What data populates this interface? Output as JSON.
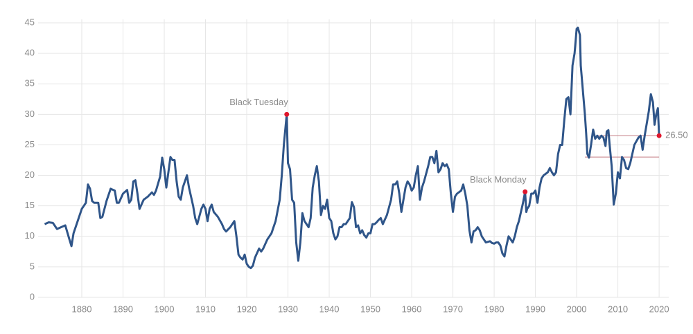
{
  "chart_data": {
    "type": "line",
    "color": "#2f5589",
    "marker_color": "#e0162b",
    "reference_color": "#c47a82",
    "grid": true,
    "xlim": [
      1870,
      2022
    ],
    "xticks": [
      1880,
      1890,
      1900,
      1910,
      1920,
      1930,
      1940,
      1950,
      1960,
      1970,
      1980,
      1990,
      2000,
      2010,
      2020
    ],
    "ylim": [
      0,
      45
    ],
    "yticks": [
      0,
      5,
      10,
      15,
      20,
      25,
      30,
      35,
      40,
      45
    ],
    "x": [
      1871,
      1872,
      1873,
      1874,
      1875,
      1876,
      1877,
      1877.5,
      1878,
      1879,
      1880,
      1881,
      1881.5,
      1882,
      1882.5,
      1883,
      1884,
      1884.5,
      1885,
      1886,
      1887,
      1888,
      1888.5,
      1889,
      1890,
      1891,
      1891.5,
      1892,
      1892.5,
      1893,
      1893.5,
      1894,
      1895,
      1896,
      1897,
      1897.5,
      1898,
      1899,
      1899.5,
      1900,
      1900.5,
      1901,
      1901.5,
      1902,
      1902.5,
      1903,
      1903.5,
      1904,
      1904.5,
      1905,
      1905.5,
      1906,
      1907,
      1907.5,
      1908,
      1909,
      1909.5,
      1910,
      1910.5,
      1911,
      1911.5,
      1912,
      1913,
      1914,
      1914.5,
      1915,
      1916,
      1917,
      1917.5,
      1918,
      1918.5,
      1919,
      1919.5,
      1920,
      1920.5,
      1921,
      1921.5,
      1922,
      1923,
      1923.5,
      1924,
      1925,
      1926,
      1926.5,
      1927,
      1928,
      1928.5,
      1929,
      1929.7,
      1930,
      1930.5,
      1931,
      1931.5,
      1932,
      1932.5,
      1933,
      1933.5,
      1934,
      1934.5,
      1935,
      1935.5,
      1936,
      1936.5,
      1937,
      1937.5,
      1938,
      1938.5,
      1939,
      1939.5,
      1940,
      1940.5,
      1941,
      1941.5,
      1942,
      1942.5,
      1943,
      1943.5,
      1944,
      1945,
      1945.5,
      1946,
      1946.5,
      1947,
      1947.5,
      1948,
      1948.5,
      1949,
      1949.5,
      1950,
      1950.5,
      1951,
      1951.5,
      1952,
      1952.5,
      1953,
      1954,
      1955,
      1955.5,
      1956,
      1956.5,
      1957,
      1957.5,
      1958,
      1958.5,
      1959,
      1959.5,
      1960,
      1960.5,
      1961,
      1961.5,
      1962,
      1962.5,
      1963,
      1964,
      1964.5,
      1965,
      1965.5,
      1966,
      1966.5,
      1967,
      1967.5,
      1968,
      1968.5,
      1969,
      1969.5,
      1970,
      1970.5,
      1971,
      1972,
      1972.5,
      1973,
      1973.5,
      1974,
      1974.5,
      1975,
      1975.5,
      1976,
      1976.5,
      1977,
      1977.5,
      1978,
      1979,
      1979.5,
      1980,
      1980.5,
      1981,
      1981.5,
      1982,
      1982.5,
      1983,
      1983.5,
      1984,
      1984.5,
      1985,
      1985.5,
      1986,
      1987,
      1987.5,
      1987.8,
      1988,
      1988.5,
      1989,
      1989.5,
      1990,
      1990.5,
      1991,
      1991.5,
      1992,
      1993,
      1993.5,
      1994,
      1994.5,
      1995,
      1995.5,
      1996,
      1996.5,
      1997,
      1997.5,
      1998,
      1998.5,
      1999,
      1999.5,
      2000,
      2000.3,
      2000.8,
      2001,
      2001.5,
      2002,
      2002.3,
      2002.6,
      2003,
      2003.5,
      2004,
      2004.5,
      2005,
      2005.5,
      2006,
      2006.5,
      2007,
      2007.3,
      2007.7,
      2008,
      2008.5,
      2009,
      2009.5,
      2010,
      2010.5,
      2011,
      2011.5,
      2012,
      2012.5,
      2013,
      2013.5,
      2014,
      2015,
      2015.5,
      2016,
      2016.5,
      2017,
      2017.5,
      2018,
      2018.5,
      2018.9,
      2019.3,
      2019.7,
      2020
    ],
    "values": [
      12,
      12.3,
      12.2,
      11.2,
      11.5,
      11.8,
      9.5,
      8.4,
      10.5,
      12.5,
      14.5,
      15.5,
      18.5,
      17.8,
      15.8,
      15.5,
      15.5,
      13,
      13.2,
      15.8,
      17.8,
      17.5,
      15.5,
      15.5,
      17,
      17.6,
      15.5,
      16,
      19,
      19.2,
      17,
      14.5,
      16,
      16.5,
      17.2,
      16.8,
      17.5,
      19.8,
      22.9,
      21,
      18,
      20.5,
      23,
      22.5,
      22.5,
      19,
      16.5,
      16,
      18,
      19,
      20,
      18,
      15,
      13,
      12,
      14.5,
      15.2,
      14.5,
      12.5,
      14.5,
      15.2,
      14,
      13.2,
      12,
      11.2,
      10.8,
      11.5,
      12.5,
      10,
      7,
      6.5,
      6.2,
      7,
      5.5,
      5,
      4.8,
      5.2,
      6.5,
      8,
      7.5,
      8,
      9.5,
      10.5,
      11.5,
      12.5,
      16,
      20,
      25,
      30,
      22,
      21,
      16,
      15.5,
      9,
      6,
      9,
      13.8,
      12.5,
      12,
      11.5,
      13,
      18,
      20,
      21.5,
      19,
      13.5,
      15,
      14.5,
      16,
      13,
      12.5,
      10.5,
      9.5,
      10,
      11.5,
      11.5,
      12,
      12,
      13,
      15.6,
      14.8,
      11.5,
      11.8,
      10.5,
      11,
      10.2,
      9.8,
      10.5,
      10.5,
      12,
      12,
      12.3,
      12.7,
      13,
      12,
      13.5,
      16,
      18.5,
      18.5,
      19,
      17,
      14,
      16,
      18,
      19,
      18.5,
      17.5,
      18,
      20,
      21.5,
      16,
      18,
      19,
      21.5,
      23,
      23,
      22,
      24,
      20.5,
      21,
      22,
      21.5,
      21.8,
      21,
      17,
      14,
      16.5,
      17,
      17.5,
      18.5,
      17,
      15,
      11,
      9,
      10.8,
      11,
      11.5,
      11,
      10,
      9.5,
      9,
      9.2,
      8.9,
      8.8,
      9,
      9,
      8.5,
      7.2,
      6.7,
      8.5,
      10,
      9.5,
      9,
      10,
      11.5,
      12.5,
      15.5,
      17.3,
      14,
      14.5,
      15,
      17,
      17,
      17.5,
      15.5,
      18,
      19.5,
      20,
      20.5,
      21.2,
      20.5,
      20,
      20.5,
      23.5,
      25,
      25,
      29,
      32.5,
      32.8,
      30,
      38,
      40,
      44,
      44.2,
      43,
      38,
      34,
      30,
      27,
      23.5,
      22.9,
      25,
      27.5,
      26,
      26.5,
      26,
      26.5,
      26.2,
      24.8,
      27.2,
      27.4,
      25,
      21.5,
      15.2,
      17,
      20.5,
      19.5,
      23,
      22.5,
      21.2,
      21,
      22,
      23.5,
      25,
      26.2,
      26.5,
      24.2,
      26.5,
      28.5,
      30.5,
      33.3,
      32,
      28.3,
      30,
      31,
      26.5
    ],
    "annotations": [
      {
        "label": "Black Tuesday",
        "x": 1929.7,
        "y": 30,
        "position": "above"
      },
      {
        "label": "Black Monday",
        "x": 1987.5,
        "y": 17.3,
        "position": "above"
      },
      {
        "label": "26.50",
        "x": 2020,
        "y": 26.5,
        "position": "right"
      }
    ],
    "reference_lines": [
      {
        "y": 26.5,
        "x": [
          2005,
          2020
        ]
      },
      {
        "y": 23,
        "x": [
          2002,
          2020
        ]
      }
    ]
  }
}
